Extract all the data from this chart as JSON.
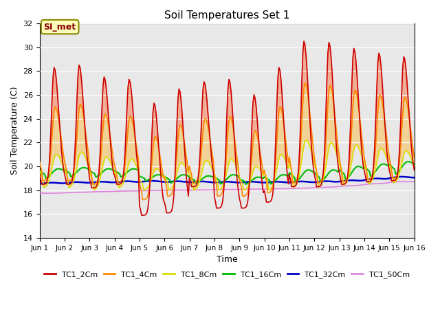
{
  "title": "Soil Temperatures Set 1",
  "xlabel": "Time",
  "ylabel": "Soil Temperature (C)",
  "ylim": [
    14,
    32
  ],
  "xlim": [
    0,
    360
  ],
  "series_colors": {
    "TC1_2Cm": "#cc0000",
    "TC1_4Cm": "#ff8800",
    "TC1_8Cm": "#dddd00",
    "TC1_16Cm": "#00bb00",
    "TC1_32Cm": "#0000cc",
    "TC1_50Cm": "#dd88dd"
  },
  "annotation_text": "SI_met",
  "annotation_color": "#880000",
  "annotation_bg": "#ffffbb",
  "annotation_border": "#888800",
  "background_color": "#e8e8e8",
  "tick_labels": [
    "Jun 1",
    "Jun 2",
    "Jun 3",
    "Jun 4",
    "Jun 5",
    "Jun 6",
    "Jun 7",
    "Jun 8",
    "Jun 9",
    "Jun 10",
    "Jun 11",
    "Jun 12",
    "Jun 13",
    "Jun 14",
    "Jun 15",
    "Jun 16"
  ],
  "tick_positions": [
    0,
    24,
    48,
    72,
    96,
    120,
    144,
    168,
    192,
    216,
    240,
    264,
    288,
    312,
    336,
    360
  ],
  "yticks": [
    14,
    16,
    18,
    20,
    22,
    24,
    26,
    28,
    30,
    32
  ],
  "legend_labels": [
    "TC1_2Cm",
    "TC1_4Cm",
    "TC1_8Cm",
    "TC1_16Cm",
    "TC1_32Cm",
    "TC1_50Cm"
  ],
  "peak_hours_2cm": [
    14,
    14,
    14,
    14,
    14,
    14,
    14,
    14,
    14,
    14,
    14,
    14,
    14,
    14,
    14
  ],
  "peak_vals_2cm": [
    28.3,
    28.5,
    27.5,
    27.3,
    25.3,
    26.5,
    27.1,
    27.3,
    26.0,
    28.3,
    30.5,
    30.4,
    29.9,
    29.5,
    29.2
  ],
  "trough_vals_2cm": [
    18.5,
    18.5,
    18.2,
    18.5,
    15.9,
    16.1,
    18.3,
    16.5,
    16.5,
    17.0,
    18.3,
    18.3,
    18.5,
    18.7,
    18.8
  ]
}
